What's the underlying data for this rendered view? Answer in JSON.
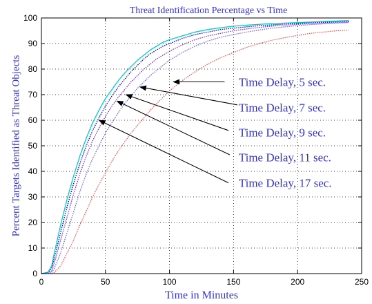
{
  "chart_data": {
    "type": "line",
    "title": "Threat Identification Percentage vs Time",
    "xlabel": "Time in Minutes",
    "ylabel": "Percent Targets Identified as Threat Objects",
    "xlim": [
      0,
      250
    ],
    "ylim": [
      0,
      100
    ],
    "x_ticks": [
      0,
      50,
      100,
      150,
      200,
      250
    ],
    "y_ticks": [
      0,
      10,
      20,
      30,
      40,
      50,
      60,
      70,
      80,
      90,
      100
    ],
    "grid": true,
    "grid_style": "dotted",
    "x": [
      0,
      5,
      8,
      10,
      15,
      20,
      25,
      30,
      35,
      40,
      45,
      50,
      55,
      60,
      65,
      70,
      75,
      80,
      85,
      90,
      95,
      100,
      110,
      120,
      130,
      140,
      150,
      160,
      170,
      180,
      190,
      200,
      210,
      220,
      230,
      240
    ],
    "series": [
      {
        "color": "#00cccc",
        "values": [
          0,
          0.5,
          3,
          8,
          19,
          29,
          38,
          46,
          53,
          59,
          64,
          68.5,
          72,
          75.5,
          78.5,
          81,
          83.5,
          85.5,
          87.5,
          89,
          90.5,
          91.5,
          93,
          94.5,
          95.5,
          96.2,
          96.8,
          97.2,
          97.5,
          97.8,
          98,
          98.2,
          98.4,
          98.6,
          98.8,
          99
        ]
      },
      {
        "color": "#0000cc",
        "values": [
          0,
          0.3,
          2,
          6,
          16,
          26,
          35,
          43,
          50,
          56,
          61,
          65.5,
          69.5,
          73,
          76,
          79,
          81.5,
          84,
          86,
          87.5,
          89,
          90,
          92,
          93.5,
          94.5,
          95.5,
          96,
          96.5,
          97,
          97.3,
          97.6,
          97.9,
          98.1,
          98.3,
          98.5,
          98.7
        ]
      },
      {
        "color": "#7733cc",
        "values": [
          0,
          0.2,
          1,
          4,
          13,
          22,
          31,
          39,
          46,
          52,
          57,
          61.5,
          65.5,
          69,
          72,
          75,
          77.5,
          80,
          82,
          84,
          85.5,
          87,
          89.5,
          91.5,
          93,
          94,
          95,
          95.7,
          96.3,
          96.8,
          97.2,
          97.5,
          97.8,
          98,
          98.2,
          98.4
        ]
      },
      {
        "color": "#6666ee",
        "values": [
          0,
          0,
          0.5,
          2,
          8,
          16,
          24,
          32,
          39,
          45,
          50,
          55,
          59,
          63,
          66.5,
          69.5,
          72.5,
          75,
          77.5,
          79.5,
          81.5,
          83.5,
          86.5,
          89,
          91,
          92.5,
          93.5,
          94.5,
          95.3,
          96,
          96.5,
          97,
          97.4,
          97.7,
          98,
          98.2
        ]
      },
      {
        "color": "#ee5555",
        "values": [
          0,
          0,
          0,
          0.5,
          3,
          8,
          13,
          19,
          24.5,
          30,
          35,
          39.5,
          44,
          48,
          51.5,
          55,
          58,
          61,
          64,
          66.5,
          69,
          71.5,
          75.5,
          79,
          82,
          84.5,
          86.5,
          88.5,
          90,
          91.3,
          92.3,
          93.2,
          94,
          94.5,
          95,
          95.3
        ]
      }
    ],
    "annotations": [
      {
        "text": "Time Delay, 5 sec.",
        "arrow_to": [
          103,
          75
        ],
        "tail_x": 143,
        "tail_y": 75,
        "text_x": 154,
        "text_y": 75
      },
      {
        "text": "Time Delay, 7 sec.",
        "arrow_to": [
          77,
          73
        ],
        "tail_x": 153,
        "tail_y": 66,
        "text_x": 154,
        "text_y": 65
      },
      {
        "text": "Time Delay, 9 sec.",
        "arrow_to": [
          66,
          70
        ],
        "tail_x": 146,
        "tail_y": 56,
        "text_x": 154,
        "text_y": 55.3
      },
      {
        "text": "Time Delay, 11 sec.",
        "arrow_to": [
          59,
          67.5
        ],
        "tail_x": 147,
        "tail_y": 46.5,
        "text_x": 154,
        "text_y": 45.5
      },
      {
        "text": "Time Delay, 17 sec.",
        "arrow_to": [
          45,
          60
        ],
        "tail_x": 146,
        "tail_y": 35.5,
        "text_x": 154,
        "text_y": 35.5
      }
    ]
  }
}
